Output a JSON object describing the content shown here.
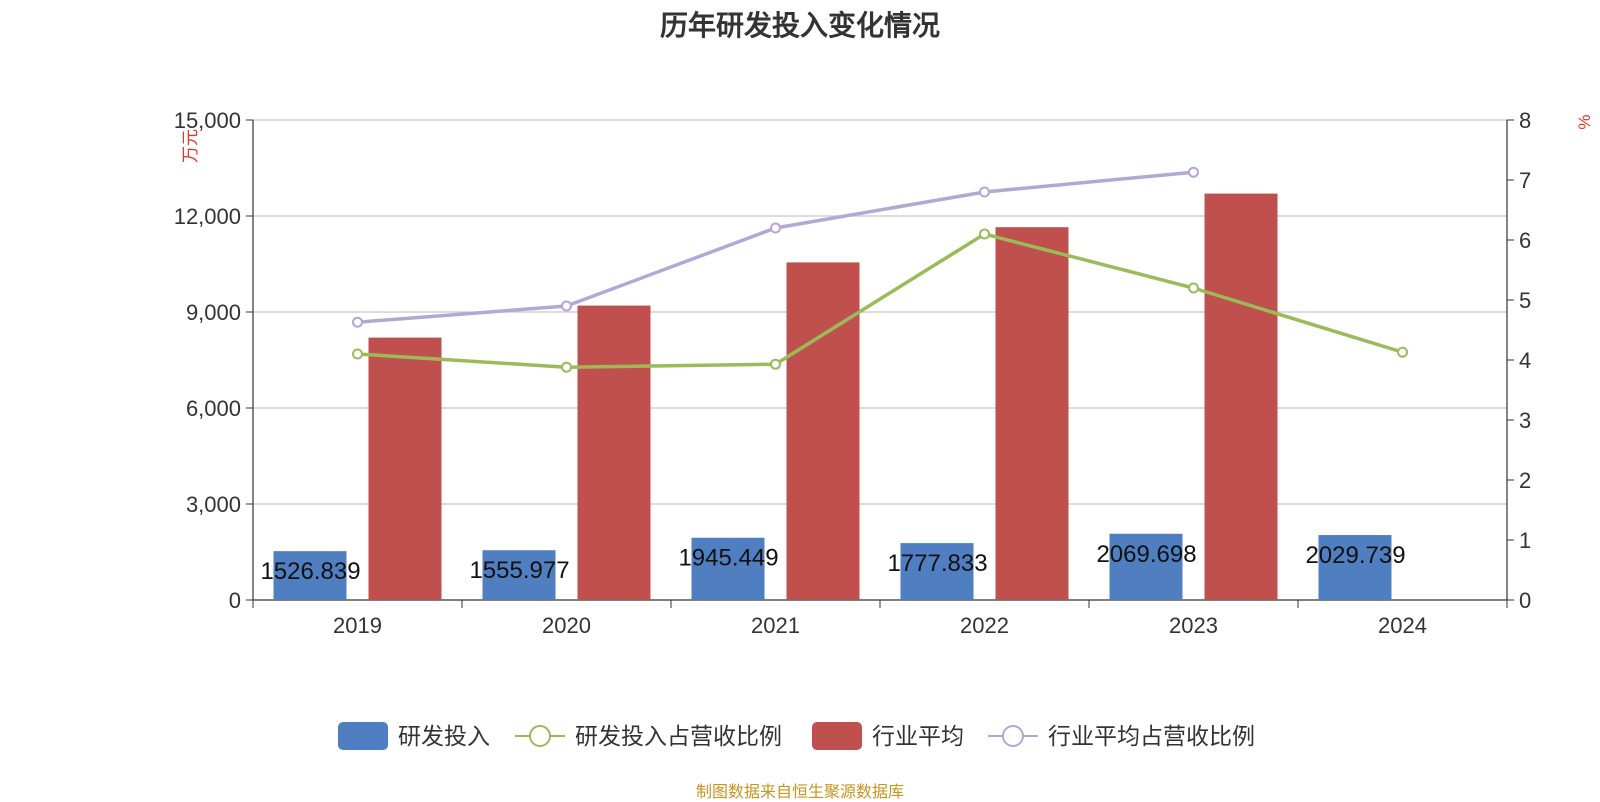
{
  "title": "历年研发投入变化情况",
  "source": "制图数据来自恒生聚源数据库",
  "chart_data": {
    "type": "bar",
    "categories": [
      "2019",
      "2020",
      "2021",
      "2022",
      "2023",
      "2024"
    ],
    "y_left": {
      "label": "万元",
      "ticks": [
        "0",
        "3,000",
        "6,000",
        "9,000",
        "12,000",
        "15,000"
      ],
      "range": [
        0,
        15000
      ]
    },
    "y_right": {
      "label": "%",
      "ticks": [
        "0",
        "1",
        "2",
        "3",
        "4",
        "5",
        "6",
        "7",
        "8"
      ],
      "range": [
        0,
        8
      ]
    },
    "grid": true,
    "legend_position": "bottom",
    "series": [
      {
        "name": "研发投入",
        "type": "bar",
        "axis": "left",
        "color": "#4f7fc1",
        "values": [
          1526.839,
          1555.977,
          1945.449,
          1777.833,
          2069.698,
          2029.739
        ],
        "labels": [
          "1526.839",
          "1555.977",
          "1945.449",
          "1777.833",
          "2069.698",
          "2029.739"
        ]
      },
      {
        "name": "研发投入占营收比例",
        "type": "line",
        "axis": "right",
        "color": "#9bbb59",
        "values": [
          4.1,
          3.88,
          3.93,
          6.1,
          5.2,
          4.13
        ]
      },
      {
        "name": "行业平均",
        "type": "bar",
        "axis": "left",
        "color": "#c0504d",
        "values": [
          8200,
          9200,
          10550,
          11650,
          12700,
          null
        ]
      },
      {
        "name": "行业平均占营收比例",
        "type": "line",
        "axis": "right",
        "color": "#b4a7d6",
        "values": [
          4.63,
          4.9,
          6.2,
          6.8,
          7.13,
          null
        ]
      }
    ]
  }
}
